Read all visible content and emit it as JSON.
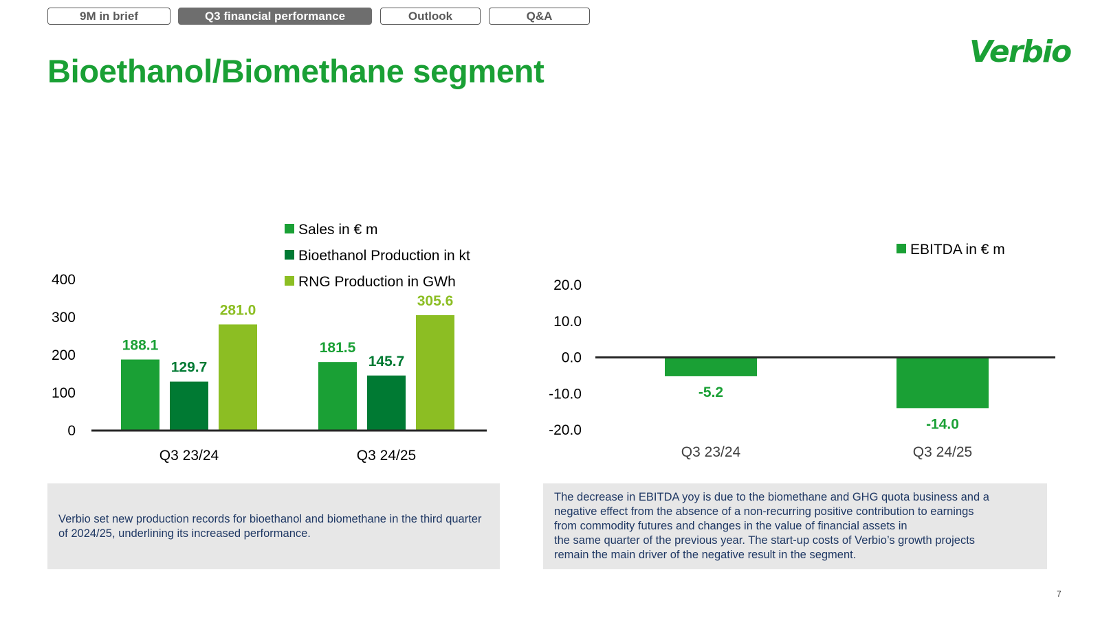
{
  "nav": {
    "tabs": [
      {
        "label": "9M in brief",
        "active": false
      },
      {
        "label": "Q3 financial performance",
        "active": true
      },
      {
        "label": "Outlook",
        "active": false
      },
      {
        "label": "Q&A",
        "active": false
      }
    ]
  },
  "page_title": "Bioethanol/Biomethane segment",
  "brand": {
    "logo_text": "Verbio",
    "color": "#1aa035"
  },
  "chart_data": [
    {
      "type": "bar",
      "categories": [
        "Q3 23/24",
        "Q3 24/25"
      ],
      "series": [
        {
          "name": "Sales in € m",
          "color": "#1aa035",
          "values": [
            188.1,
            181.5
          ],
          "labels": [
            "188.1",
            "181.5"
          ]
        },
        {
          "name": "Bioethanol Production in kt",
          "color": "#007a33",
          "values": [
            129.7,
            145.7
          ],
          "labels": [
            "129.7",
            "145.7"
          ]
        },
        {
          "name": "RNG Production in GWh",
          "color": "#8cbe23",
          "values": [
            281.0,
            305.6
          ],
          "labels": [
            "281.0",
            "305.6"
          ]
        }
      ],
      "yticks": [
        "0",
        "100",
        "200",
        "300",
        "400"
      ],
      "ylim": [
        0,
        400
      ],
      "legend": "top-right"
    },
    {
      "type": "bar",
      "categories": [
        "Q3 23/24",
        "Q3 24/25"
      ],
      "series": [
        {
          "name": "EBITDA in € m",
          "color": "#1aa035",
          "values": [
            -5.2,
            -14.0
          ],
          "labels": [
            "-5.2",
            "-14.0"
          ]
        }
      ],
      "yticks": [
        "-20.0",
        "-10.0",
        "0.0",
        "10.0",
        "20.0"
      ],
      "ylim": [
        -20,
        20
      ],
      "legend": "top-right"
    }
  ],
  "notes": {
    "left": "Verbio set new production records for bioethanol and biomethane in the third quarter of 2024/25, underlining its increased performance.",
    "right_lines": [
      "The decrease in EBITDA yoy is due to the biomethane and GHG quota business and a",
      "negative effect from the absence of a non-recurring positive contribution to earnings",
      "from commodity futures and changes in the value of financial assets in",
      "the same quarter of the previous year. The start-up costs of Verbio’s growth projects",
      "remain the main driver of the negative result in the segment."
    ]
  },
  "page_number": "7"
}
